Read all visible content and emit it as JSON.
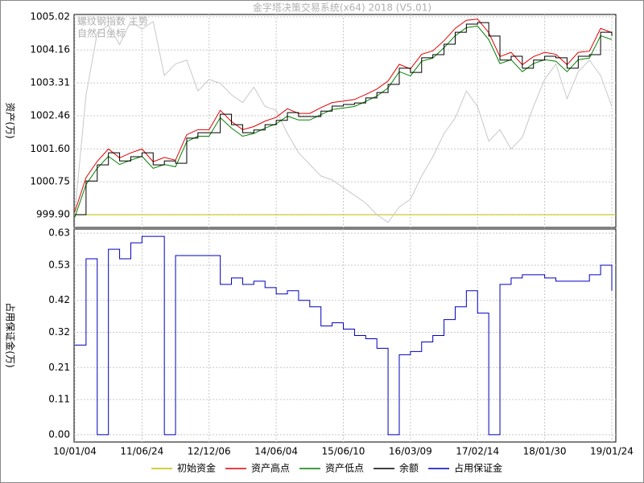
{
  "chart_data": [
    {
      "type": "line",
      "title": "金字塔决策交易系统(x64) 2018 (V5.01)",
      "annotations": [
        "螺纹钢指数 主势",
        "自然日坐标"
      ],
      "ylabel": "资产(万)",
      "ylim": [
        999.57,
        1005.08
      ],
      "yticks": [
        {
          "value": 999.9,
          "label": "999.90"
        },
        1000.75,
        {
          "value": 1001.6,
          "label": "1001.60"
        },
        1002.46,
        1003.31,
        1004.16,
        1005.02
      ],
      "grid": true,
      "reference": {
        "name": "初始资金",
        "color": "#c0c000",
        "value": 999.9
      },
      "series": [
        {
          "color": "#c8c8c8",
          "step": false,
          "values": [
            999.95,
            1003.0,
            1004.6,
            1004.8,
            1004.3,
            1004.9,
            1004.7,
            1004.9,
            1003.5,
            1003.8,
            1003.9,
            1003.1,
            1003.4,
            1003.3,
            1003.0,
            1002.8,
            1003.2,
            1002.7,
            1002.6,
            1002.0,
            1001.5,
            1001.2,
            1000.9,
            1000.8,
            1000.6,
            1000.4,
            1000.2,
            999.9,
            999.7,
            1000.1,
            1000.3,
            1000.9,
            1001.4,
            1002.0,
            1002.4,
            1003.1,
            1002.7,
            1001.8,
            1002.1,
            1001.6,
            1001.9,
            1002.7,
            1003.4,
            1003.8,
            1002.9,
            1003.6,
            1003.9,
            1003.5,
            1002.7
          ]
        },
        {
          "name": "资产高点",
          "color": "#e00000",
          "step": false,
          "values": [
            999.98,
            1000.86,
            1001.28,
            1001.6,
            1001.37,
            1001.5,
            1001.6,
            1001.27,
            1001.38,
            1001.31,
            1001.97,
            1002.1,
            1002.1,
            1002.6,
            1002.31,
            1002.1,
            1002.18,
            1002.32,
            1002.42,
            1002.64,
            1002.52,
            1002.52,
            1002.67,
            1002.8,
            1002.84,
            1002.88,
            1003.01,
            1003.15,
            1003.36,
            1003.79,
            1003.67,
            1004.05,
            1004.14,
            1004.4,
            1004.72,
            1004.93,
            1004.96,
            1004.61,
            1003.99,
            1004.1,
            1003.78,
            1003.99,
            1004.1,
            1004.05,
            1003.78,
            1004.1,
            1004.13,
            1004.72,
            1004.61
          ]
        },
        {
          "name": "资产低点",
          "color": "#008000",
          "step": false,
          "values": [
            999.84,
            1000.68,
            1001.1,
            1001.41,
            1001.2,
            1001.31,
            1001.41,
            1001.1,
            1001.2,
            1001.14,
            1001.79,
            1001.93,
            1001.93,
            1002.41,
            1002.14,
            1001.93,
            1002.0,
            1002.14,
            1002.25,
            1002.45,
            1002.35,
            1002.35,
            1002.49,
            1002.62,
            1002.66,
            1002.7,
            1002.83,
            1002.97,
            1003.18,
            1003.6,
            1003.49,
            1003.87,
            1003.95,
            1004.22,
            1004.53,
            1004.74,
            1004.78,
            1004.43,
            1003.81,
            1003.91,
            1003.6,
            1003.81,
            1003.91,
            1003.87,
            1003.6,
            1003.91,
            1003.95,
            1004.53,
            1004.43
          ]
        },
        {
          "name": "余额",
          "color": "#000000",
          "step": true,
          "values": [
            999.9,
            1000.77,
            1001.19,
            1001.5,
            1001.29,
            1001.4,
            1001.5,
            1001.19,
            1001.29,
            1001.23,
            1001.88,
            1002.02,
            1002.02,
            1002.5,
            1002.23,
            1002.02,
            1002.09,
            1002.23,
            1002.34,
            1002.54,
            1002.44,
            1002.44,
            1002.58,
            1002.71,
            1002.75,
            1002.79,
            1002.92,
            1003.06,
            1003.27,
            1003.69,
            1003.58,
            1003.96,
            1004.04,
            1004.31,
            1004.62,
            1004.83,
            1004.87,
            1004.52,
            1003.9,
            1004.0,
            1003.69,
            1003.9,
            1004.0,
            1003.96,
            1003.69,
            1004.0,
            1004.04,
            1004.62,
            1004.52
          ]
        }
      ]
    },
    {
      "type": "line",
      "ylabel": "占用保证金(万)",
      "categories": [
        "10/01/04",
        null,
        null,
        null,
        null,
        null,
        "11/06/24",
        null,
        null,
        null,
        null,
        null,
        "12/12/06",
        null,
        null,
        null,
        null,
        null,
        "14/06/04",
        null,
        null,
        null,
        null,
        null,
        "15/06/10",
        null,
        null,
        null,
        null,
        null,
        "16/03/09",
        null,
        null,
        null,
        null,
        null,
        "17/02/14",
        null,
        null,
        null,
        null,
        null,
        "18/01/30",
        null,
        null,
        null,
        null,
        null,
        "19/01/24"
      ],
      "ylim": [
        -0.023,
        0.643
      ],
      "yticks": [
        {
          "value": 0,
          "label": "0.00"
        },
        0.11,
        0.21,
        0.32,
        0.42,
        0.53,
        0.63
      ],
      "grid": true,
      "series": [
        {
          "name": "占用保证金",
          "color": "#0000c0",
          "step": true,
          "values": [
            0.28,
            0.55,
            0,
            0.58,
            0.55,
            0.6,
            0.62,
            0.62,
            0,
            0.56,
            0.56,
            0.56,
            0.56,
            0.47,
            0.49,
            0.47,
            0.48,
            0.46,
            0.44,
            0.45,
            0.42,
            0.4,
            0.34,
            0.35,
            0.33,
            0.31,
            0.3,
            0.27,
            0,
            0.25,
            0.26,
            0.29,
            0.31,
            0.36,
            0.4,
            0.45,
            0.38,
            0,
            0.47,
            0.49,
            0.5,
            0.5,
            0.49,
            0.48,
            0.48,
            0.48,
            0.5,
            0.53,
            0.45
          ]
        }
      ]
    }
  ]
}
